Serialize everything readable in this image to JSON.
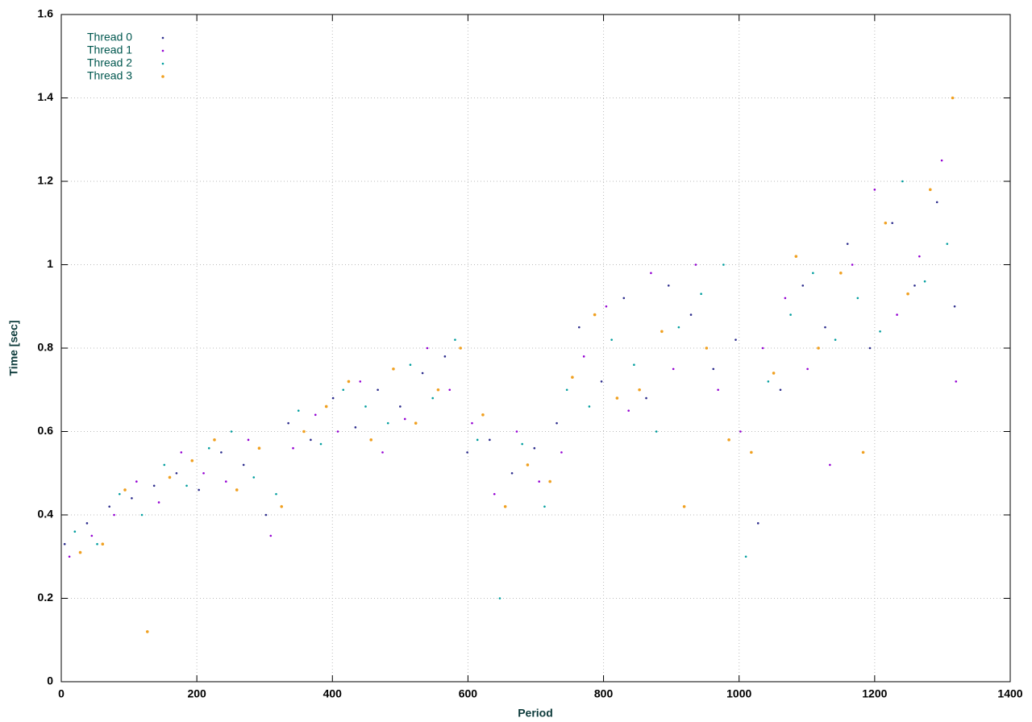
{
  "chart_data": {
    "type": "scatter",
    "xlabel": "Period",
    "ylabel": "Time [sec]",
    "xlim": [
      0,
      1400
    ],
    "xticks": [
      0,
      200,
      400,
      600,
      800,
      1000,
      1200,
      1400
    ],
    "ylim": [
      0,
      1.6
    ],
    "yticks": [
      0,
      0.2,
      0.4,
      0.6,
      0.8,
      1,
      1.2,
      1.4,
      1.6
    ],
    "grid": true,
    "legend": "top-left",
    "series": [
      {
        "name": "Thread 0",
        "color": "#2b2b8c",
        "x": [
          5,
          38,
          71,
          104,
          137,
          170,
          203,
          236,
          269,
          302,
          335,
          368,
          401,
          434,
          467,
          500,
          533,
          566,
          599,
          632,
          665,
          698,
          731,
          764,
          797,
          830,
          863,
          896,
          929,
          962,
          995,
          1028,
          1061,
          1094,
          1127,
          1160,
          1193,
          1226,
          1259,
          1292,
          1318
        ],
        "values": [
          0.33,
          0.38,
          0.42,
          0.44,
          0.47,
          0.5,
          0.46,
          0.55,
          0.52,
          0.4,
          0.62,
          0.58,
          0.68,
          0.61,
          0.7,
          0.66,
          0.74,
          0.78,
          0.55,
          0.58,
          0.5,
          0.56,
          0.62,
          0.85,
          0.72,
          0.92,
          0.68,
          0.95,
          0.88,
          0.75,
          0.82,
          0.38,
          0.7,
          0.95,
          0.85,
          1.05,
          0.8,
          1.1,
          0.95,
          1.15,
          0.9
        ]
      },
      {
        "name": "Thread 1",
        "color": "#9400d3",
        "x": [
          12,
          45,
          78,
          111,
          144,
          177,
          210,
          243,
          276,
          309,
          342,
          375,
          408,
          441,
          474,
          507,
          540,
          573,
          606,
          639,
          672,
          705,
          738,
          771,
          804,
          837,
          870,
          903,
          936,
          969,
          1002,
          1035,
          1068,
          1101,
          1134,
          1167,
          1200,
          1233,
          1266,
          1299,
          1320
        ],
        "values": [
          0.3,
          0.35,
          0.4,
          0.48,
          0.43,
          0.55,
          0.5,
          0.48,
          0.58,
          0.35,
          0.56,
          0.64,
          0.6,
          0.72,
          0.55,
          0.63,
          0.8,
          0.7,
          0.62,
          0.45,
          0.6,
          0.48,
          0.55,
          0.78,
          0.9,
          0.65,
          0.98,
          0.75,
          1.0,
          0.7,
          0.6,
          0.8,
          0.92,
          0.75,
          0.52,
          1.0,
          1.18,
          0.88,
          1.02,
          1.25,
          0.72
        ]
      },
      {
        "name": "Thread 2",
        "color": "#009e9e",
        "x": [
          20,
          53,
          86,
          119,
          152,
          185,
          218,
          251,
          284,
          317,
          350,
          383,
          416,
          449,
          482,
          515,
          548,
          581,
          614,
          647,
          680,
          713,
          746,
          779,
          812,
          845,
          878,
          911,
          944,
          977,
          1010,
          1043,
          1076,
          1109,
          1142,
          1175,
          1208,
          1241,
          1274,
          1307
        ],
        "values": [
          0.36,
          0.33,
          0.45,
          0.4,
          0.52,
          0.47,
          0.56,
          0.6,
          0.49,
          0.45,
          0.65,
          0.57,
          0.7,
          0.66,
          0.62,
          0.76,
          0.68,
          0.82,
          0.58,
          0.2,
          0.57,
          0.42,
          0.7,
          0.66,
          0.82,
          0.76,
          0.6,
          0.85,
          0.93,
          1.0,
          0.3,
          0.72,
          0.88,
          0.98,
          0.82,
          0.92,
          0.84,
          1.2,
          0.96,
          1.05
        ]
      },
      {
        "name": "Thread 3",
        "color": "#f0a020",
        "x": [
          28,
          61,
          94,
          127,
          160,
          193,
          226,
          259,
          292,
          325,
          358,
          391,
          424,
          457,
          490,
          523,
          556,
          589,
          622,
          655,
          688,
          721,
          754,
          787,
          820,
          853,
          886,
          919,
          952,
          985,
          1018,
          1051,
          1084,
          1117,
          1150,
          1183,
          1216,
          1249,
          1282,
          1315
        ],
        "values": [
          0.31,
          0.33,
          0.46,
          0.12,
          0.49,
          0.53,
          0.58,
          0.46,
          0.56,
          0.42,
          0.6,
          0.66,
          0.72,
          0.58,
          0.75,
          0.62,
          0.7,
          0.8,
          0.64,
          0.42,
          0.52,
          0.48,
          0.73,
          0.88,
          0.68,
          0.7,
          0.84,
          0.42,
          0.8,
          0.58,
          0.55,
          0.74,
          1.02,
          0.8,
          0.98,
          0.55,
          1.1,
          0.93,
          1.18,
          1.4
        ]
      }
    ]
  }
}
